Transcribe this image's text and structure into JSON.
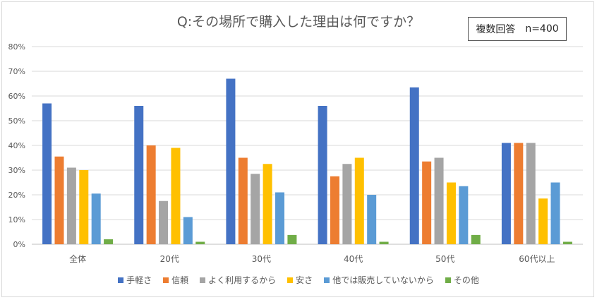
{
  "chart_data": {
    "type": "bar",
    "title": "Q:その場所で購入した理由は何ですか？",
    "note": {
      "label": "複数回答",
      "n": "n=400"
    },
    "categories": [
      "全体",
      "20代",
      "30代",
      "40代",
      "50代",
      "60代以上"
    ],
    "y_ticks": [
      "0%",
      "10%",
      "20%",
      "30%",
      "40%",
      "50%",
      "60%",
      "70%",
      "80%"
    ],
    "ylim": [
      0,
      80
    ],
    "grid": true,
    "legend_position": "bottom",
    "series": [
      {
        "name": "手軽さ",
        "color": "#4472C4",
        "values": [
          57,
          56,
          67,
          56,
          63.5,
          41
        ]
      },
      {
        "name": "信頼",
        "color": "#ED7D31",
        "values": [
          35.5,
          40,
          35,
          27.5,
          33.5,
          41
        ]
      },
      {
        "name": "よく利用するから",
        "color": "#A5A5A5",
        "values": [
          31,
          17.5,
          28.5,
          32.5,
          35,
          41
        ]
      },
      {
        "name": "安さ",
        "color": "#FFC000",
        "values": [
          30,
          39,
          32.5,
          35,
          25,
          18.5
        ]
      },
      {
        "name": "他では販売していないから",
        "color": "#5B9BD5",
        "values": [
          20.5,
          11,
          21,
          20,
          23.5,
          25
        ]
      },
      {
        "name": "その他",
        "color": "#70AD47",
        "values": [
          2,
          1,
          3.75,
          1,
          3.75,
          1
        ]
      }
    ]
  }
}
